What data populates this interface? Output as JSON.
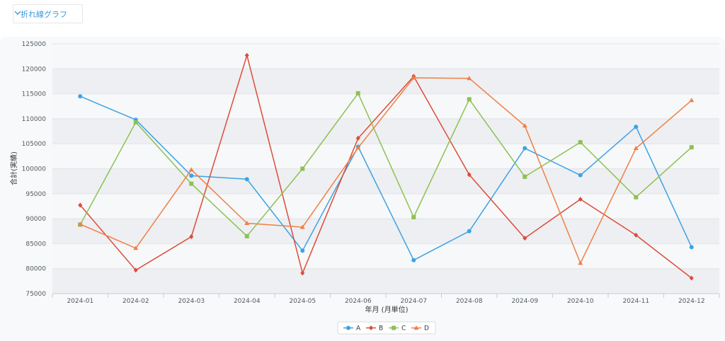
{
  "toolbar": {
    "chart_type_label": "折れ線グラフ",
    "dropdown_icon": "chevron-down-icon",
    "accent_color": "#3498db"
  },
  "chart_data": {
    "type": "line",
    "title": "",
    "xlabel": "年月 (月単位)",
    "ylabel": "合計(実績)",
    "ylim": [
      75000,
      125000
    ],
    "yticks": [
      75000,
      80000,
      85000,
      90000,
      95000,
      100000,
      105000,
      110000,
      115000,
      120000,
      125000
    ],
    "grid": true,
    "legend_position": "bottom-center",
    "categories": [
      "2024-01",
      "2024-02",
      "2024-03",
      "2024-04",
      "2024-05",
      "2024-06",
      "2024-07",
      "2024-08",
      "2024-09",
      "2024-10",
      "2024-11",
      "2024-12"
    ],
    "series": [
      {
        "name": "A",
        "color": "#3ba3e6",
        "marker": "circle",
        "values": [
          114500,
          109800,
          98600,
          97900,
          83600,
          104400,
          81700,
          87500,
          104100,
          98700,
          108400,
          84300
        ]
      },
      {
        "name": "B",
        "color": "#dd4b39",
        "marker": "diamond",
        "values": [
          92700,
          79700,
          86400,
          122700,
          79100,
          106100,
          118500,
          98800,
          86100,
          93900,
          86700,
          78100
        ]
      },
      {
        "name": "C",
        "color": "#8dc153",
        "marker": "square",
        "values": [
          88800,
          109300,
          97000,
          86500,
          100000,
          115100,
          90300,
          113900,
          98400,
          105300,
          94300,
          104300
        ]
      },
      {
        "name": "D",
        "color": "#f07f45",
        "marker": "triangle",
        "values": [
          88900,
          84100,
          99800,
          89100,
          88300,
          104200,
          118200,
          118100,
          108600,
          81100,
          104100,
          113700
        ]
      }
    ]
  }
}
